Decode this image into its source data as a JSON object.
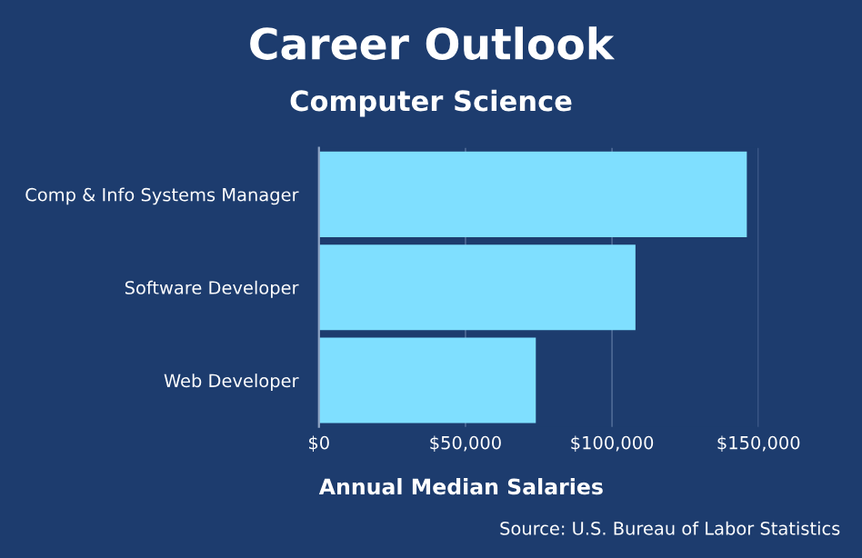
{
  "chart_data": {
    "type": "bar",
    "orientation": "horizontal",
    "title": "Career Outlook",
    "subtitle": "Computer Science",
    "categories": [
      "Comp & Info Systems Manager",
      "Software Developer",
      "Web Developer"
    ],
    "values": [
      146000,
      108000,
      74000
    ],
    "color": "#7fdfff",
    "xlim": [
      0,
      150000
    ],
    "xticks": [
      {
        "value": 0,
        "label": "$0"
      },
      {
        "value": 50000,
        "label": "$50,000"
      },
      {
        "value": 100000,
        "label": "$100,000"
      },
      {
        "value": 150000,
        "label": "$150,000"
      }
    ],
    "xlabel": "Annual Median Salaries",
    "grid": "x",
    "annotations": [
      "Source: U.S. Bureau of Labor Statistics"
    ]
  }
}
